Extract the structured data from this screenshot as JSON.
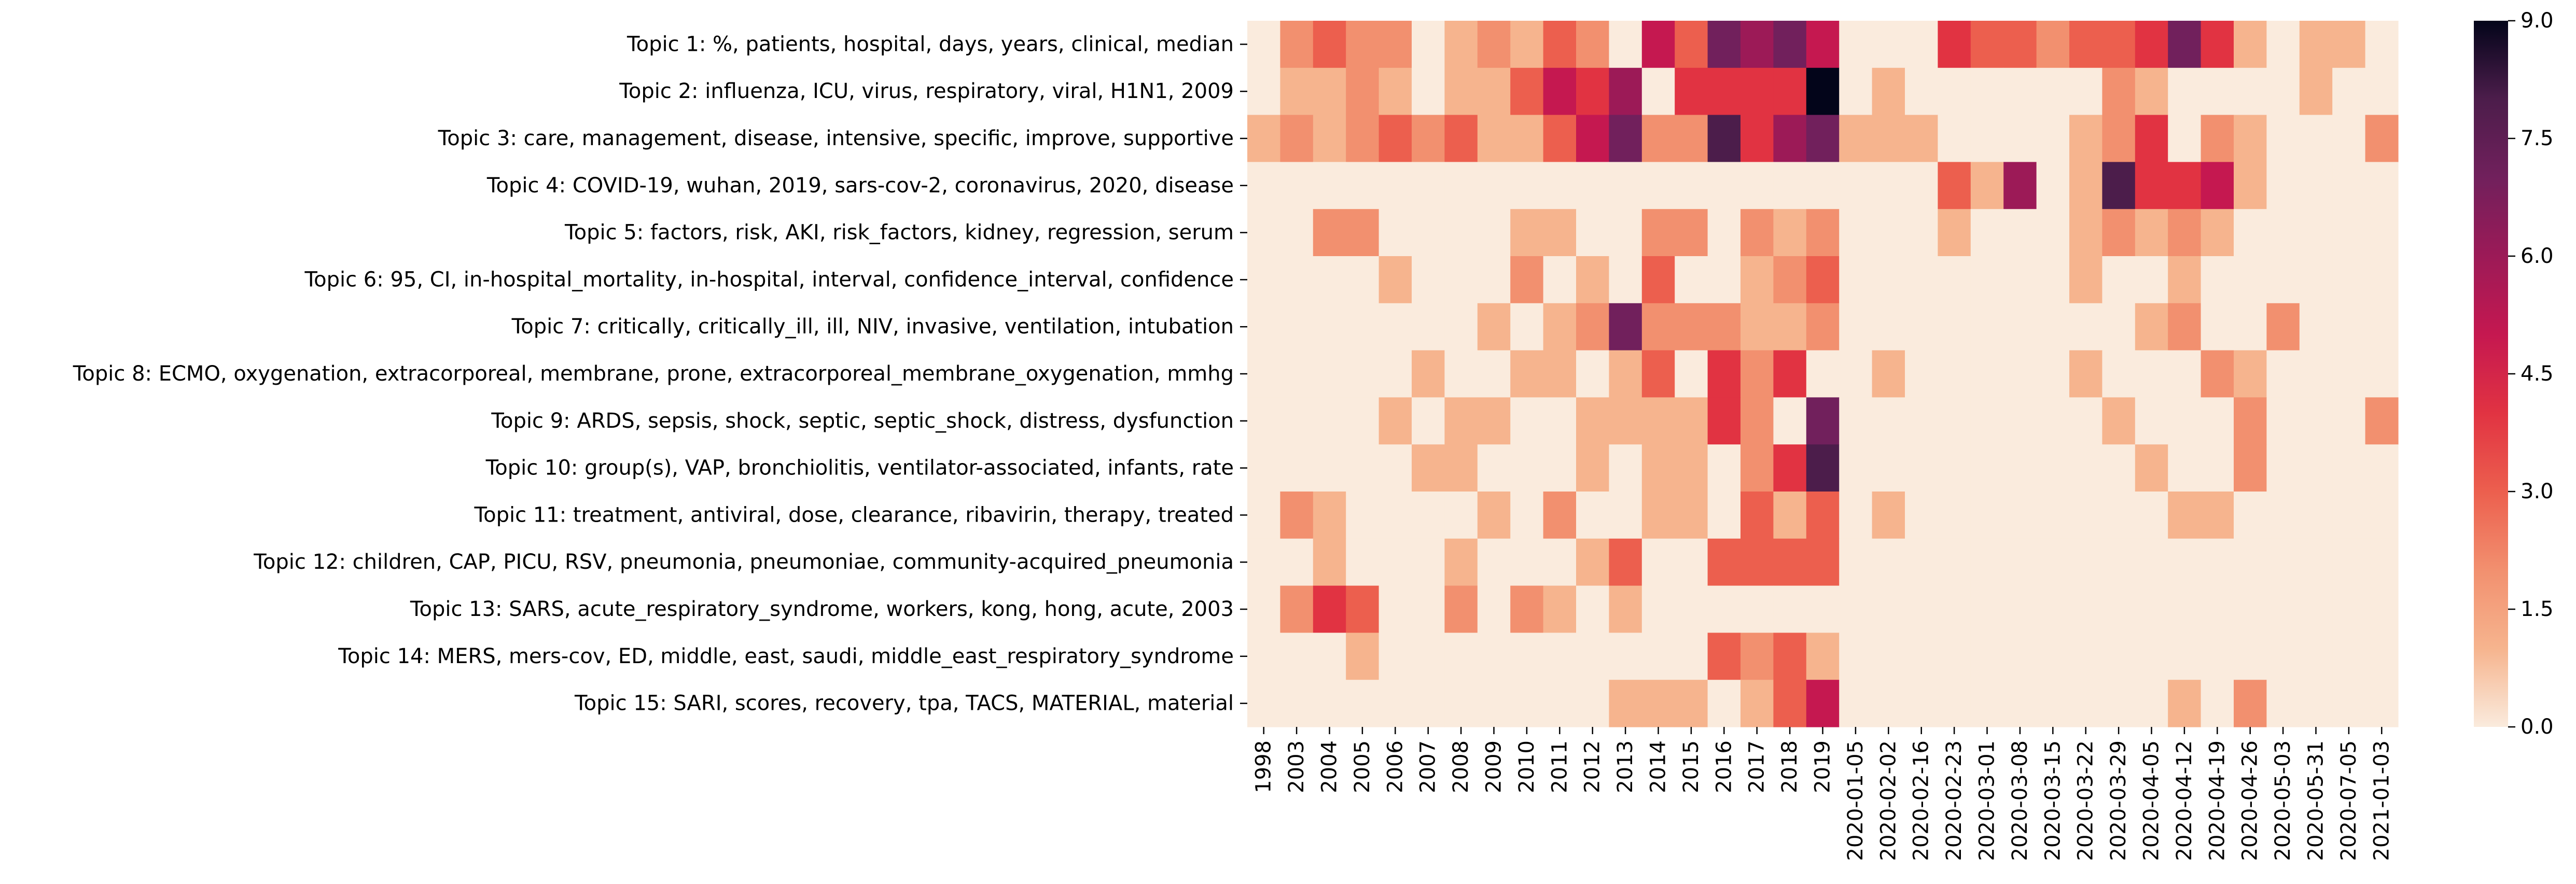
{
  "chart_data": {
    "type": "heatmap",
    "colormap": "rocket_r",
    "vmin": 0,
    "vmax": 9,
    "colorbar_ticks": [
      "0.0",
      "1.5",
      "3.0",
      "4.5",
      "6.0",
      "7.5",
      "9.0"
    ],
    "colorbar_tick_values": [
      0,
      1.5,
      3,
      4.5,
      6,
      7.5,
      9
    ],
    "colors": {
      "0": "#faebdd",
      "1": "#f6b48e",
      "2": "#f2906f",
      "3": "#ec5f4e",
      "4": "#e13342",
      "5": "#c51850",
      "6": "#9c1a57",
      "7": "#71205c",
      "8": "#4c1d4b",
      "9": "#03051a"
    },
    "x": [
      "1998",
      "2003",
      "2004",
      "2005",
      "2006",
      "2007",
      "2008",
      "2009",
      "2010",
      "2011",
      "2012",
      "2013",
      "2014",
      "2015",
      "2016",
      "2017",
      "2018",
      "2019",
      "2020-01-05",
      "2020-02-02",
      "2020-02-16",
      "2020-02-23",
      "2020-03-01",
      "2020-03-08",
      "2020-03-15",
      "2020-03-22",
      "2020-03-29",
      "2020-04-05",
      "2020-04-12",
      "2020-04-19",
      "2020-04-26",
      "2020-05-03",
      "2020-05-31",
      "2020-07-05",
      "2021-01-03"
    ],
    "y": [
      "Topic 1: %, patients, hospital, days, years, clinical, median",
      "Topic 2: influenza, ICU, virus, respiratory, viral, H1N1, 2009",
      "Topic 3: care, management, disease, intensive, specific, improve, supportive",
      "Topic 4: COVID-19, wuhan, 2019, sars-cov-2, coronavirus, 2020, disease",
      "Topic 5: factors, risk, AKI, risk_factors, kidney, regression, serum",
      "Topic 6: 95, CI, in-hospital_mortality, in-hospital, interval, confidence_interval, confidence",
      "Topic 7: critically, critically_ill, ill, NIV, invasive, ventilation, intubation",
      "Topic 8: ECMO, oxygenation, extracorporeal, membrane, prone, extracorporeal_membrane_oxygenation, mmhg",
      "Topic 9: ARDS, sepsis, shock, septic, septic_shock, distress, dysfunction",
      "Topic 10: group(s), VAP, bronchiolitis, ventilator-associated, infants, rate",
      "Topic 11: treatment, antiviral, dose, clearance, ribavirin, therapy, treated",
      "Topic 12: children, CAP, PICU, RSV, pneumonia, pneumoniae, community-acquired_pneumonia",
      "Topic 13: SARS, acute_respiratory_syndrome, workers, kong, hong, acute, 2003",
      "Topic 14: MERS, mers-cov, ED, middle, east, saudi, middle_east_respiratory_syndrome",
      "Topic 15: SARI, scores, recovery, tpa, TACS, MATERIAL, material"
    ],
    "z": [
      [
        0,
        2,
        3,
        2,
        2,
        0,
        1,
        2,
        1,
        3,
        2,
        0,
        5,
        3,
        7,
        6,
        7,
        5,
        0,
        0,
        0,
        4,
        3,
        3,
        2,
        3,
        3,
        4,
        7,
        4,
        1,
        0,
        1,
        1,
        0
      ],
      [
        0,
        1,
        1,
        2,
        1,
        0,
        1,
        1,
        3,
        5,
        4,
        6,
        0,
        4,
        4,
        4,
        4,
        9,
        0,
        1,
        0,
        0,
        0,
        0,
        0,
        0,
        2,
        1,
        0,
        0,
        0,
        0,
        1,
        0,
        0
      ],
      [
        1,
        2,
        1,
        2,
        3,
        2,
        3,
        1,
        1,
        3,
        5,
        7,
        2,
        2,
        8,
        4,
        6,
        7,
        1,
        1,
        1,
        0,
        0,
        0,
        0,
        1,
        2,
        4,
        0,
        2,
        1,
        0,
        0,
        0,
        2
      ],
      [
        0,
        0,
        0,
        0,
        0,
        0,
        0,
        0,
        0,
        0,
        0,
        0,
        0,
        0,
        0,
        0,
        0,
        0,
        0,
        0,
        0,
        3,
        1,
        6,
        0,
        1,
        8,
        4,
        4,
        5,
        1,
        0,
        0,
        0,
        0
      ],
      [
        0,
        0,
        2,
        2,
        0,
        0,
        0,
        0,
        1,
        1,
        0,
        0,
        2,
        2,
        0,
        2,
        1,
        2,
        0,
        0,
        0,
        1,
        0,
        0,
        0,
        1,
        2,
        1,
        2,
        1,
        0,
        0,
        0,
        0,
        0
      ],
      [
        0,
        0,
        0,
        0,
        1,
        0,
        0,
        0,
        2,
        0,
        1,
        0,
        3,
        0,
        0,
        1,
        2,
        3,
        0,
        0,
        0,
        0,
        0,
        0,
        0,
        1,
        0,
        0,
        1,
        0,
        0,
        0,
        0,
        0,
        0
      ],
      [
        0,
        0,
        0,
        0,
        0,
        0,
        0,
        1,
        0,
        1,
        2,
        7,
        2,
        2,
        2,
        1,
        1,
        2,
        0,
        0,
        0,
        0,
        0,
        0,
        0,
        0,
        0,
        1,
        2,
        0,
        0,
        2,
        0,
        0,
        0
      ],
      [
        0,
        0,
        0,
        0,
        0,
        1,
        0,
        0,
        1,
        1,
        0,
        1,
        3,
        0,
        4,
        2,
        4,
        0,
        0,
        1,
        0,
        0,
        0,
        0,
        0,
        1,
        0,
        0,
        0,
        2,
        1,
        0,
        0,
        0,
        0
      ],
      [
        0,
        0,
        0,
        0,
        1,
        0,
        1,
        1,
        0,
        0,
        1,
        1,
        1,
        1,
        4,
        2,
        0,
        7,
        0,
        0,
        0,
        0,
        0,
        0,
        0,
        0,
        1,
        0,
        0,
        0,
        2,
        0,
        0,
        0,
        2
      ],
      [
        0,
        0,
        0,
        0,
        0,
        1,
        1,
        0,
        0,
        0,
        1,
        0,
        1,
        1,
        0,
        2,
        4,
        8,
        0,
        0,
        0,
        0,
        0,
        0,
        0,
        0,
        0,
        1,
        0,
        0,
        2,
        0,
        0,
        0,
        0
      ],
      [
        0,
        2,
        1,
        0,
        0,
        0,
        0,
        1,
        0,
        2,
        0,
        0,
        1,
        1,
        0,
        3,
        1,
        3,
        0,
        1,
        0,
        0,
        0,
        0,
        0,
        0,
        0,
        0,
        1,
        1,
        0,
        0,
        0,
        0,
        0
      ],
      [
        0,
        0,
        1,
        0,
        0,
        0,
        1,
        0,
        0,
        0,
        1,
        3,
        0,
        0,
        3,
        3,
        3,
        3,
        0,
        0,
        0,
        0,
        0,
        0,
        0,
        0,
        0,
        0,
        0,
        0,
        0,
        0,
        0,
        0,
        0
      ],
      [
        0,
        2,
        4,
        3,
        0,
        0,
        2,
        0,
        2,
        1,
        0,
        1,
        0,
        0,
        0,
        0,
        0,
        0,
        0,
        0,
        0,
        0,
        0,
        0,
        0,
        0,
        0,
        0,
        0,
        0,
        0,
        0,
        0,
        0,
        0
      ],
      [
        0,
        0,
        0,
        1,
        0,
        0,
        0,
        0,
        0,
        0,
        0,
        0,
        0,
        0,
        3,
        2,
        3,
        1,
        0,
        0,
        0,
        0,
        0,
        0,
        0,
        0,
        0,
        0,
        0,
        0,
        0,
        0,
        0,
        0,
        0
      ],
      [
        0,
        0,
        0,
        0,
        0,
        0,
        0,
        0,
        0,
        0,
        0,
        1,
        1,
        1,
        0,
        1,
        3,
        5,
        0,
        0,
        0,
        0,
        0,
        0,
        0,
        0,
        0,
        0,
        1,
        0,
        2,
        0,
        0,
        0,
        0
      ]
    ]
  }
}
